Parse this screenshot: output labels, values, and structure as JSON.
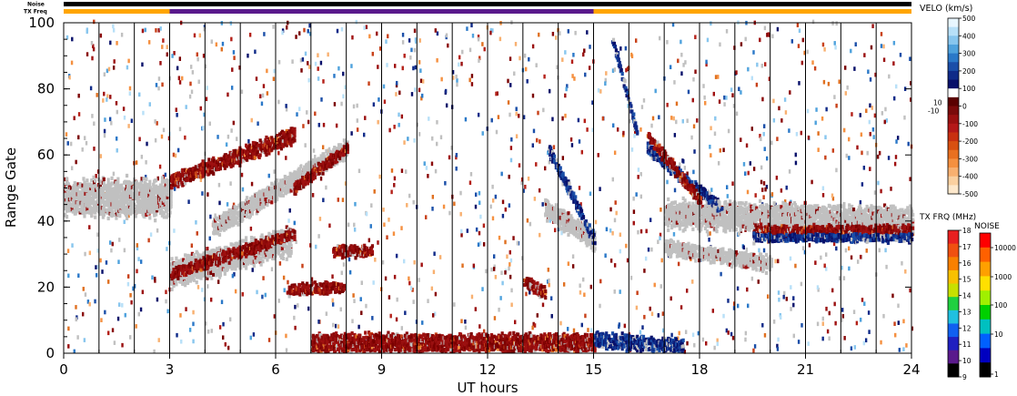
{
  "chart_data": {
    "type": "scatter",
    "xlabel": "UT hours",
    "ylabel": "Range Gate",
    "xlim": [
      0,
      24
    ],
    "ylim": [
      0,
      100
    ],
    "x_ticks": [
      0,
      3,
      6,
      9,
      12,
      15,
      18,
      21,
      24
    ],
    "y_ticks": [
      0,
      20,
      40,
      60,
      80,
      100
    ],
    "vertical_lines_ut": [
      1,
      2,
      3,
      4,
      5,
      6,
      7,
      8,
      9,
      10,
      11,
      12,
      13,
      14,
      15,
      16,
      17,
      18,
      19,
      20,
      21,
      22,
      23
    ],
    "status_bars": {
      "noise_label": "Noise",
      "txfreq_label": "TX Freq",
      "noise_color": "#000000",
      "txfreq_segments": [
        {
          "start": 0,
          "end": 3,
          "color": "#ffa500"
        },
        {
          "start": 3,
          "end": 15,
          "color": "#5a1a8c"
        },
        {
          "start": 15,
          "end": 24,
          "color": "#ffa500"
        }
      ]
    },
    "ground_scatter_color": "#c0c0c0",
    "echo_bands": [
      {
        "type": "ground",
        "t0": 0,
        "t1": 3,
        "g0": 47,
        "g1": 47,
        "w": 9
      },
      {
        "type": "ground",
        "t0": 3,
        "t1": 6.4,
        "g0": 24,
        "g1": 34,
        "w": 7
      },
      {
        "type": "ground",
        "t0": 4.2,
        "t1": 8,
        "g0": 38,
        "g1": 62,
        "w": 5
      },
      {
        "type": "ground",
        "t0": 13.6,
        "t1": 15,
        "g0": 44,
        "g1": 34,
        "w": 5
      },
      {
        "type": "ground",
        "t0": 17,
        "t1": 24,
        "g0": 42,
        "g1": 40,
        "w": 7
      },
      {
        "type": "ground",
        "t0": 17,
        "t1": 20,
        "g0": 32,
        "g1": 27,
        "w": 4
      },
      {
        "type": "negative",
        "t0": 3,
        "t1": 6.5,
        "g0": 24,
        "g1": 36,
        "w": 3
      },
      {
        "type": "negative",
        "t0": 3,
        "t1": 6.5,
        "g0": 52,
        "g1": 66,
        "w": 4
      },
      {
        "type": "negative",
        "t0": 6.5,
        "t1": 8,
        "g0": 50,
        "g1": 62,
        "w": 3
      },
      {
        "type": "negative",
        "t0": 6.3,
        "t1": 7.9,
        "g0": 19,
        "g1": 20,
        "w": 3
      },
      {
        "type": "negative",
        "t0": 7.6,
        "t1": 8.7,
        "g0": 31,
        "g1": 31,
        "w": 3
      },
      {
        "type": "negative",
        "t0": 7,
        "t1": 15,
        "g0": 3,
        "g1": 3,
        "w": 5
      },
      {
        "type": "negative",
        "t0": 13,
        "t1": 13.6,
        "g0": 22,
        "g1": 18,
        "w": 3
      },
      {
        "type": "positive",
        "t0": 13.7,
        "t1": 15,
        "g0": 62,
        "g1": 34,
        "w": 3
      },
      {
        "type": "positive",
        "t0": 15.5,
        "t1": 16.2,
        "g0": 95,
        "g1": 67,
        "w": 2
      },
      {
        "type": "positive",
        "t0": 16.5,
        "t1": 18.6,
        "g0": 62,
        "g1": 44,
        "w": 3
      },
      {
        "type": "negative",
        "t0": 16.5,
        "t1": 18,
        "g0": 66,
        "g1": 46,
        "w": 3
      },
      {
        "type": "positive",
        "t0": 15,
        "t1": 17.5,
        "g0": 4,
        "g1": 2,
        "w": 4
      },
      {
        "type": "negative",
        "t0": 19.5,
        "t1": 24,
        "g0": 37,
        "g1": 37,
        "w": 3
      },
      {
        "type": "positive",
        "t0": 19.5,
        "t1": 24,
        "g0": 35,
        "g1": 35,
        "w": 2
      }
    ],
    "velocity_scale": {
      "title": "VELO (km/s)",
      "ticks": [
        500,
        400,
        300,
        200,
        100,
        0,
        -100,
        -200,
        -300,
        -400,
        -500
      ],
      "center_labels": [
        "10",
        "-10"
      ],
      "colors": [
        "#e8f6ff",
        "#b8e0f8",
        "#88c6ee",
        "#4fa2dd",
        "#2a78c8",
        "#1a4ea8",
        "#0f2a88",
        "#08106a",
        "#ffffff",
        "#5a0000",
        "#7a0a0a",
        "#9a1010",
        "#b41818",
        "#c83010",
        "#d85010",
        "#e87020",
        "#f59040",
        "#f8b070",
        "#fad0a0",
        "#fde8cc"
      ]
    },
    "txfreq_scale": {
      "title": "TX FRQ (MHz)",
      "ticks": [
        18,
        17,
        16,
        15,
        14,
        13,
        12,
        11,
        10,
        9
      ],
      "colors": [
        "#e82020",
        "#f05010",
        "#f88000",
        "#f8c000",
        "#c8e000",
        "#20d040",
        "#20c0e0",
        "#1060f0",
        "#2020c0",
        "#5a1a8c",
        "#000000"
      ]
    },
    "noise_scale": {
      "title": "NOISE",
      "ticks": [
        "10000",
        "1000",
        "100",
        "10",
        "1"
      ],
      "colors": [
        "#ff0000",
        "#ff6000",
        "#ffa000",
        "#ffe000",
        "#a0f000",
        "#00d000",
        "#00c0c0",
        "#0060ff",
        "#0000c0",
        "#000000"
      ]
    }
  }
}
